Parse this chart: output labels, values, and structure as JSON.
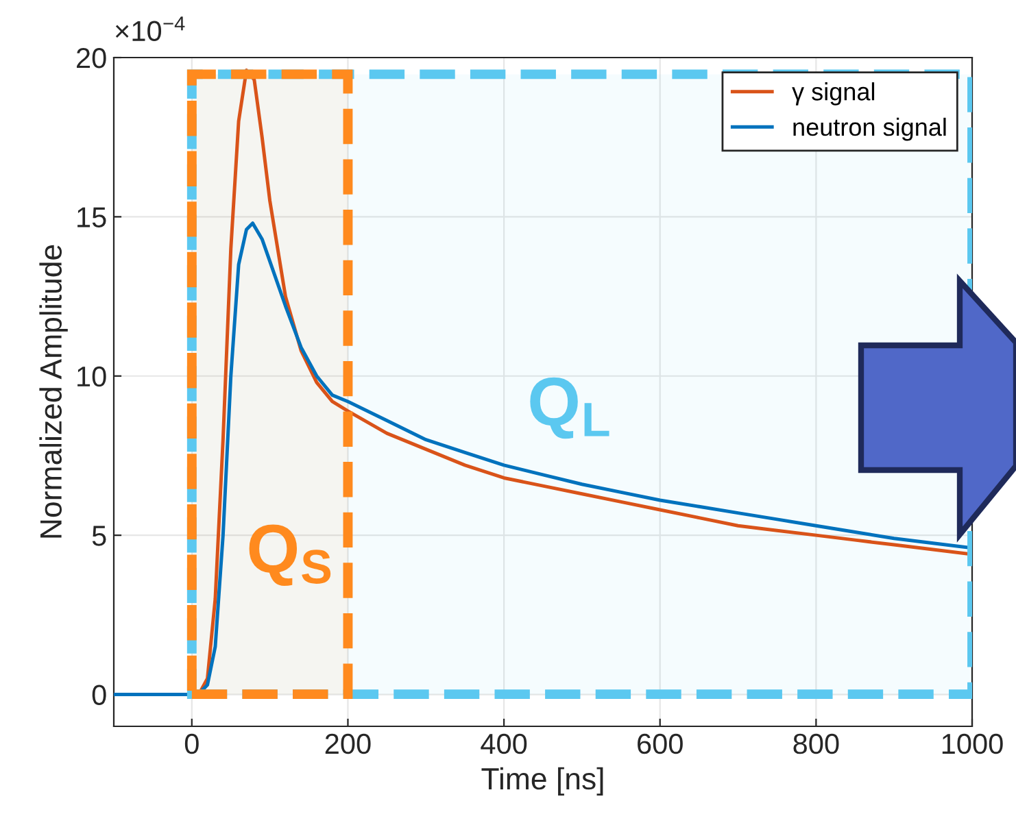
{
  "chart_data": {
    "type": "line",
    "xlabel": "Time [ns]",
    "ylabel": "Normalized Amplitude",
    "xlim": [
      -100,
      1000
    ],
    "xticks": [
      0,
      200,
      400,
      600,
      800,
      1000
    ],
    "ylim": [
      -1,
      20
    ],
    "yticks": [
      0,
      5,
      10,
      15,
      20
    ],
    "grid": true,
    "legend": "top right",
    "line_style": "solid",
    "marker": "none",
    "series": [
      {
        "name": "γ signal",
        "color": "#d95319",
        "x": [
          -100,
          -50,
          0,
          10,
          20,
          30,
          40,
          50,
          60,
          70,
          80,
          90,
          100,
          120,
          140,
          160,
          180,
          200,
          250,
          300,
          350,
          400,
          450,
          500,
          550,
          600,
          650,
          700,
          750,
          800,
          850,
          900,
          950,
          1000
        ],
        "values": [
          0,
          0,
          0,
          0.05,
          0.5,
          3,
          8,
          14,
          18,
          19.6,
          19.3,
          17.5,
          15.5,
          12.5,
          10.8,
          9.8,
          9.2,
          8.9,
          8.2,
          7.7,
          7.2,
          6.8,
          6.55,
          6.3,
          6.05,
          5.8,
          5.55,
          5.3,
          5.15,
          5.0,
          4.85,
          4.7,
          4.55,
          4.4
        ]
      },
      {
        "name": "neutron signal",
        "color": "#0072bd",
        "x": [
          -100,
          -50,
          0,
          10,
          20,
          30,
          40,
          50,
          60,
          70,
          78,
          90,
          100,
          120,
          140,
          160,
          180,
          200,
          250,
          300,
          350,
          400,
          450,
          500,
          550,
          600,
          650,
          700,
          750,
          800,
          850,
          900,
          950,
          1000
        ],
        "values": [
          0,
          0,
          0,
          0.05,
          0.3,
          1.5,
          5,
          10,
          13.5,
          14.6,
          14.8,
          14.3,
          13.6,
          12.2,
          10.9,
          10.0,
          9.4,
          9.2,
          8.6,
          8.0,
          7.6,
          7.2,
          6.9,
          6.6,
          6.35,
          6.1,
          5.9,
          5.7,
          5.5,
          5.3,
          5.1,
          4.9,
          4.75,
          4.6
        ]
      }
    ],
    "bands": [
      {
        "axis": "x",
        "from": 0,
        "to": 1000,
        "color": "#5bc8f0",
        "label": "Q$_{L}$"
      },
      {
        "axis": "x",
        "from": 0,
        "to": 200,
        "color": "#ff8a1e",
        "label": "Q$_{S}$"
      }
    ],
    "annotations": [
      "×10$^{−4}$"
    ]
  }
}
